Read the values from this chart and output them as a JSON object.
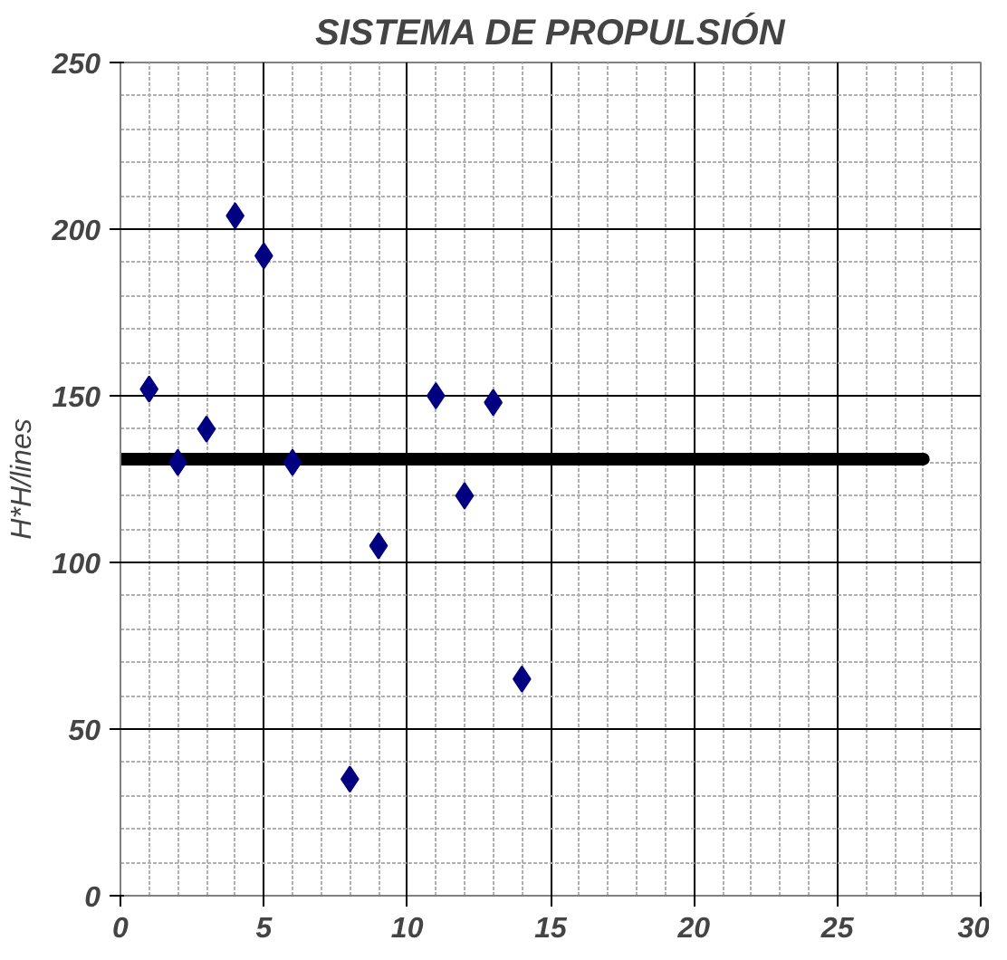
{
  "chart_data": {
    "type": "scatter",
    "title": "SISTEMA DE PROPULSIÓN",
    "ylabel": "H*H/lines",
    "xlim": [
      0,
      30
    ],
    "xticks": [
      0,
      5,
      10,
      15,
      20,
      25,
      30
    ],
    "ylim": [
      0,
      250
    ],
    "yticks": [
      0,
      50,
      100,
      150,
      200,
      250
    ],
    "grid": true,
    "marker": "diamond",
    "series": [
      {
        "color": "#000080",
        "x": [
          1,
          2,
          3,
          4,
          5,
          6,
          8,
          9,
          11,
          12,
          13,
          14
        ],
        "values": [
          152,
          130,
          140,
          204,
          192,
          130,
          35,
          105,
          150,
          120,
          148,
          65
        ]
      },
      {
        "type": "line",
        "marker": "none",
        "color": "#000000",
        "x": [
          0,
          28
        ],
        "values": [
          131,
          131
        ]
      }
    ]
  }
}
